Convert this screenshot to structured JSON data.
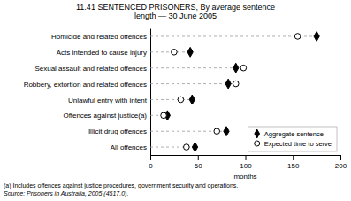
{
  "chart_data": {
    "type": "dot",
    "title": "11.41  SENTENCED PRISONERS, By average sentence\nlength — 30 June 2005",
    "categories": [
      "Homicide and related offences",
      "Acts intended to cause injury",
      "Sexual assault and related offences",
      "Robbery, extortion and related offences",
      "Unlawful entry with intent",
      "Offences against justice(a)",
      "Illicit drug offences",
      "All offences"
    ],
    "series": [
      {
        "name": "Aggregate sentence",
        "color": "#000000",
        "marker": "diamond",
        "values": [
          175,
          42,
          90,
          82,
          44,
          18,
          80,
          47
        ]
      },
      {
        "name": "Expected time to serve",
        "color": "#000000",
        "marker": "open-circle",
        "values": [
          155,
          25,
          98,
          90,
          32,
          14,
          70,
          38
        ]
      }
    ],
    "xlim": [
      0,
      200
    ],
    "xticks": [
      0,
      50,
      100,
      150,
      200
    ],
    "xlabel": "months",
    "grid": false,
    "legend": "lower right",
    "annotations": [
      "(a)  Includes offences against justice procedures, government security and operations.",
      "Source: Prisoners in Australia, 2005 (4517.0)."
    ]
  }
}
